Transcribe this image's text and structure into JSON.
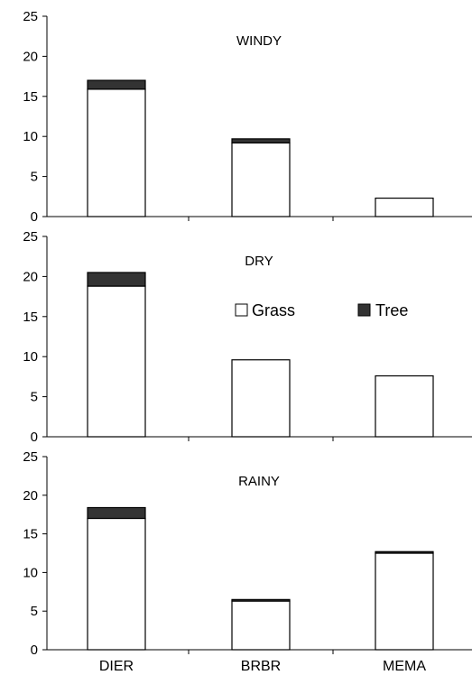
{
  "chart_data": [
    {
      "type": "bar",
      "stacked": true,
      "title": "WINDY",
      "categories": [
        "DIER",
        "BRBR",
        "MEMA"
      ],
      "series": [
        {
          "name": "Grass",
          "values": [
            15.9,
            9.2,
            2.3
          ]
        },
        {
          "name": "Tree",
          "values": [
            1.1,
            0.5,
            0
          ]
        }
      ],
      "ylim": [
        0,
        25
      ],
      "yticks": [
        0,
        5,
        10,
        15,
        20,
        25
      ],
      "grid": false
    },
    {
      "type": "bar",
      "stacked": true,
      "title": "DRY",
      "categories": [
        "DIER",
        "BRBR",
        "MEMA"
      ],
      "series": [
        {
          "name": "Grass",
          "values": [
            18.8,
            9.6,
            7.6
          ]
        },
        {
          "name": "Tree",
          "values": [
            1.7,
            0,
            0
          ]
        }
      ],
      "ylim": [
        0,
        25
      ],
      "yticks": [
        0,
        5,
        10,
        15,
        20,
        25
      ],
      "grid": false
    },
    {
      "type": "bar",
      "stacked": true,
      "title": "RAINY",
      "categories": [
        "DIER",
        "BRBR",
        "MEMA"
      ],
      "series": [
        {
          "name": "Grass",
          "values": [
            17.0,
            6.3,
            12.5
          ]
        },
        {
          "name": "Tree",
          "values": [
            1.4,
            0.2,
            0.2
          ]
        }
      ],
      "ylim": [
        0,
        25
      ],
      "yticks": [
        0,
        5,
        10,
        15,
        20,
        25
      ],
      "grid": false
    }
  ],
  "legend": {
    "placement": "inside-middle-panel",
    "items": [
      {
        "label": "Grass",
        "color": "#ffffff"
      },
      {
        "label": "Tree",
        "color": "#333333"
      }
    ]
  },
  "colors": {
    "grass": "#ffffff",
    "tree": "#333333",
    "outline": "#000000"
  }
}
